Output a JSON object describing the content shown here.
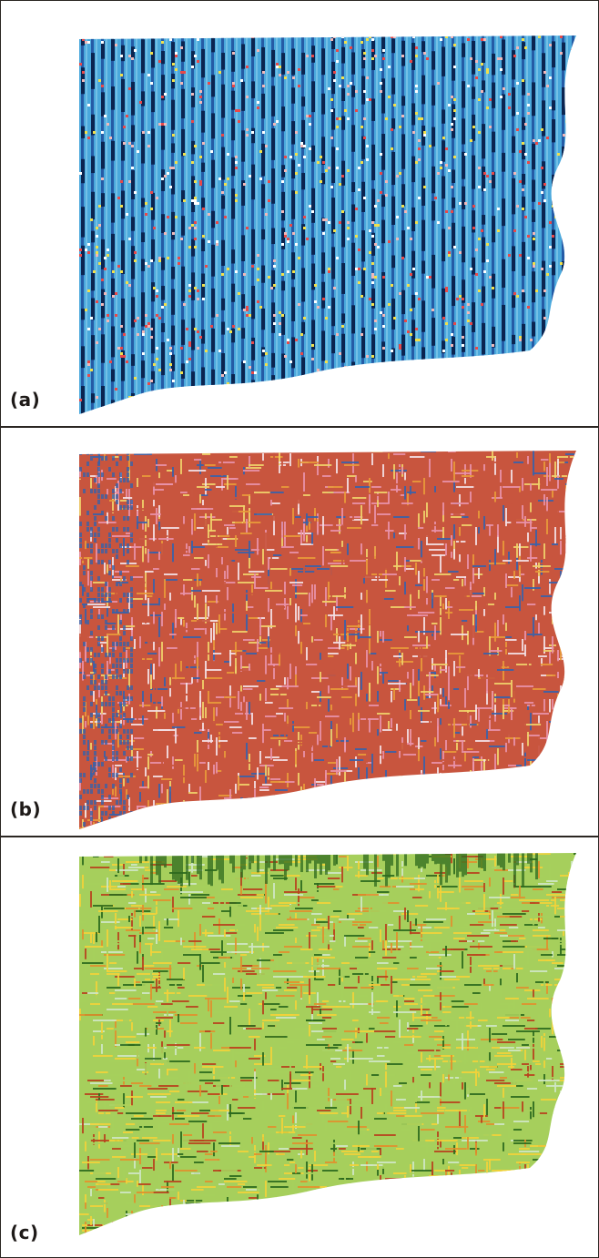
{
  "panels": [
    {
      "id": "a",
      "label": "(a)",
      "scheme": "blue-striped",
      "colors": {
        "base": "#4aa8dc",
        "light": "#8fd0ec",
        "stripe": "#1f4d9c",
        "dark": "#0b2450",
        "speckles": [
          "#e84848",
          "#f2e04a",
          "#f2b8b8",
          "#ffffff"
        ]
      }
    },
    {
      "id": "b",
      "label": "(b)",
      "scheme": "red-pink-mosaic",
      "colors": {
        "base": "#c8553e",
        "pink": "#e891a8",
        "orange": "#e89a3a",
        "yellow": "#f0d26a",
        "blue": "#3a62a8",
        "light": "#f3e0e4"
      }
    },
    {
      "id": "c",
      "label": "(c)",
      "scheme": "green-yellow-mosaic",
      "colors": {
        "base": "#a6cf5c",
        "yellow": "#f2d23a",
        "orange": "#e0902e",
        "red": "#b8421e",
        "darkgreen": "#2e6a1e",
        "light": "#cfe6c4"
      }
    }
  ]
}
